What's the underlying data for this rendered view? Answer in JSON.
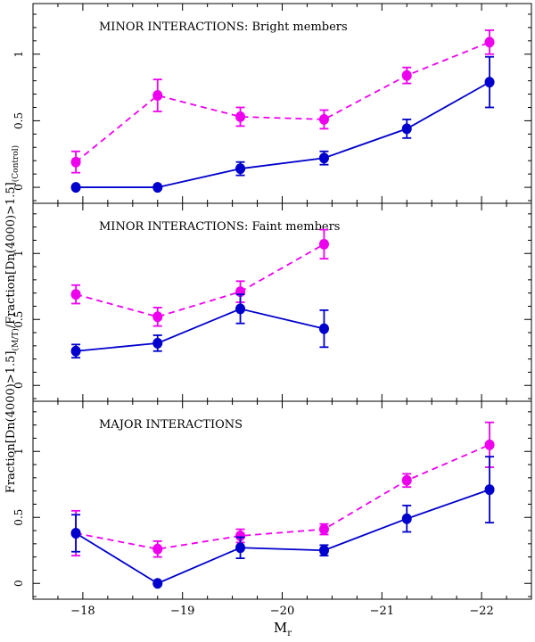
{
  "figure": {
    "ylabel_main": "Fraction[Dn(4000)>1.5]",
    "ylabel_sub1": "(M/T)",
    "ylabel_mid": "/Fraction[Dn(4000)>1.5]",
    "ylabel_sub2": "(Control)",
    "xlabel_main": "M",
    "xlabel_sub": "r",
    "xlim": [
      -17.5,
      -22.5
    ],
    "x_ticks": [
      -18,
      -19,
      -20,
      -21,
      -22
    ],
    "x_tick_labels": [
      "−18",
      "−19",
      "−20",
      "−21",
      "−22"
    ],
    "ylim": [
      -0.12,
      1.38
    ],
    "y_ticks": [
      0,
      0.5,
      1
    ],
    "y_tick_labels": [
      "0",
      "0.5",
      "1"
    ],
    "colors": {
      "magenta": "#ee00ee",
      "blue": "#0000cc"
    }
  },
  "chart_data": [
    {
      "type": "line",
      "title": "MINOR INTERACTIONS: Bright members",
      "series": [
        {
          "name": "magenta-dashed",
          "style": "dashed",
          "color": "#ee00ee",
          "x": [
            -17.93,
            -18.75,
            -19.58,
            -20.42,
            -21.25,
            -22.08
          ],
          "y": [
            0.19,
            0.69,
            0.53,
            0.51,
            0.84,
            1.09
          ],
          "err": [
            0.08,
            0.12,
            0.07,
            0.07,
            0.06,
            0.09
          ]
        },
        {
          "name": "blue-solid",
          "style": "solid",
          "color": "#0000cc",
          "x": [
            -17.93,
            -18.75,
            -19.58,
            -20.42,
            -21.25,
            -22.08
          ],
          "y": [
            0.0,
            0.0,
            0.14,
            0.22,
            0.44,
            0.79
          ],
          "err": [
            0.0,
            0.0,
            0.05,
            0.05,
            0.07,
            0.19
          ]
        }
      ]
    },
    {
      "type": "line",
      "title": "MINOR INTERACTIONS: Faint members",
      "series": [
        {
          "name": "magenta-dashed",
          "style": "dashed",
          "color": "#ee00ee",
          "x": [
            -17.93,
            -18.75,
            -19.58,
            -20.42
          ],
          "y": [
            0.69,
            0.52,
            0.71,
            1.07
          ],
          "err": [
            0.07,
            0.07,
            0.08,
            0.11
          ]
        },
        {
          "name": "blue-solid",
          "style": "solid",
          "color": "#0000cc",
          "x": [
            -17.93,
            -18.75,
            -19.58,
            -20.42
          ],
          "y": [
            0.26,
            0.32,
            0.58,
            0.43
          ],
          "err": [
            0.05,
            0.06,
            0.11,
            0.14
          ]
        }
      ]
    },
    {
      "type": "line",
      "title": "MAJOR INTERACTIONS",
      "series": [
        {
          "name": "magenta-dashed",
          "style": "dashed",
          "color": "#ee00ee",
          "x": [
            -17.93,
            -18.75,
            -19.58,
            -20.42,
            -21.25,
            -22.08
          ],
          "y": [
            0.38,
            0.26,
            0.36,
            0.41,
            0.78,
            1.05
          ],
          "err": [
            0.17,
            0.06,
            0.05,
            0.04,
            0.05,
            0.17
          ]
        },
        {
          "name": "blue-solid",
          "style": "solid",
          "color": "#0000cc",
          "x": [
            -17.93,
            -18.75,
            -19.58,
            -20.42,
            -21.25,
            -22.08
          ],
          "y": [
            0.38,
            0.0,
            0.27,
            0.25,
            0.49,
            0.71
          ],
          "err": [
            0.14,
            0.0,
            0.08,
            0.04,
            0.1,
            0.25
          ]
        }
      ]
    }
  ]
}
